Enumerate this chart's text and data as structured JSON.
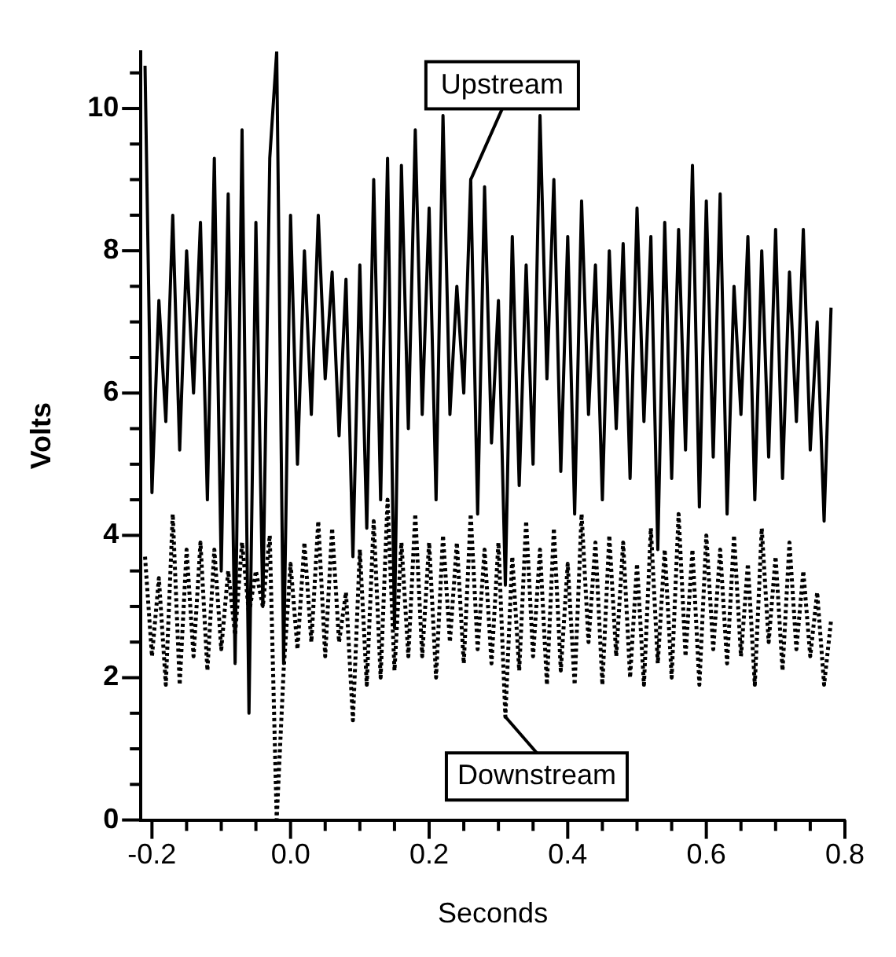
{
  "chart_data": {
    "type": "line",
    "xlabel": "Seconds",
    "ylabel": "Volts",
    "x": [
      -0.21,
      -0.2,
      -0.19,
      -0.18,
      -0.17,
      -0.16,
      -0.15,
      -0.14,
      -0.13,
      -0.12,
      -0.11,
      -0.1,
      -0.09,
      -0.08,
      -0.07,
      -0.06,
      -0.05,
      -0.04,
      -0.03,
      -0.02,
      -0.01,
      0,
      0.01,
      0.02,
      0.03,
      0.04,
      0.05,
      0.06,
      0.07,
      0.08,
      0.09,
      0.1,
      0.11,
      0.12,
      0.13,
      0.14,
      0.15,
      0.16,
      0.17,
      0.18,
      0.19,
      0.2,
      0.21,
      0.22,
      0.23,
      0.24,
      0.25,
      0.26,
      0.27,
      0.28,
      0.29,
      0.3,
      0.31,
      0.32,
      0.33,
      0.34,
      0.35,
      0.36,
      0.37,
      0.38,
      0.39,
      0.4,
      0.41,
      0.42,
      0.43,
      0.44,
      0.45,
      0.46,
      0.47,
      0.48,
      0.49,
      0.5,
      0.51,
      0.52,
      0.53,
      0.54,
      0.55,
      0.56,
      0.57,
      0.58,
      0.59,
      0.6,
      0.61,
      0.62,
      0.63,
      0.64,
      0.65,
      0.66,
      0.67,
      0.68,
      0.69,
      0.7,
      0.71,
      0.72,
      0.73,
      0.74,
      0.75,
      0.76,
      0.77,
      0.78
    ],
    "series": [
      {
        "color": "#000000",
        "line_style": "solid",
        "values": [
          10.6,
          4.6,
          7.3,
          5.6,
          8.5,
          5.2,
          8.0,
          6.0,
          8.4,
          4.5,
          9.3,
          3.5,
          8.8,
          2.2,
          9.7,
          1.5,
          8.4,
          3.0,
          9.3,
          10.8,
          2.2,
          8.5,
          5.0,
          8.0,
          5.7,
          8.5,
          6.2,
          7.7,
          5.4,
          7.6,
          3.7,
          7.8,
          4.1,
          9.0,
          4.5,
          9.3,
          2.7,
          9.2,
          5.5,
          9.7,
          5.7,
          8.6,
          4.5,
          9.9,
          5.7,
          7.5,
          6.0,
          9.0,
          4.3,
          8.9,
          5.3,
          7.3,
          3.3,
          8.2,
          4.7,
          7.8,
          5.0,
          9.9,
          6.2,
          9.0,
          4.9,
          8.2,
          4.3,
          8.7,
          5.7,
          7.8,
          4.5,
          8.0,
          5.5,
          8.1,
          4.8,
          8.6,
          5.6,
          8.2,
          3.8,
          8.4,
          4.8,
          8.3,
          5.2,
          9.2,
          4.4,
          8.7,
          5.1,
          8.8,
          4.3,
          7.5,
          5.7,
          8.2,
          4.5,
          8.0,
          5.1,
          8.3,
          4.8,
          7.7,
          5.6,
          8.3,
          5.2,
          7.0,
          4.2,
          7.2
        ]
      },
      {
        "color": "#000000",
        "line_style": "dotted",
        "values": [
          3.7,
          2.3,
          3.4,
          1.9,
          4.3,
          1.9,
          3.8,
          2.3,
          3.9,
          2.1,
          3.8,
          2.4,
          3.5,
          2.6,
          3.9,
          2.9,
          3.5,
          3.0,
          4.0,
          0.0,
          2.1,
          3.6,
          2.4,
          3.9,
          2.5,
          4.2,
          2.3,
          4.1,
          2.5,
          3.2,
          1.4,
          3.8,
          1.9,
          4.2,
          2.0,
          4.5,
          2.1,
          3.9,
          2.3,
          4.3,
          2.3,
          3.9,
          2.0,
          4.0,
          2.5,
          3.9,
          2.2,
          4.3,
          2.4,
          3.8,
          2.2,
          3.9,
          1.45,
          3.7,
          2.1,
          4.2,
          2.3,
          3.8,
          1.9,
          4.1,
          2.1,
          3.6,
          1.9,
          4.3,
          2.5,
          3.9,
          1.9,
          4.0,
          2.3,
          3.9,
          2.0,
          3.6,
          1.9,
          4.1,
          2.2,
          3.8,
          2.0,
          4.3,
          2.3,
          3.8,
          1.9,
          4.0,
          2.4,
          3.8,
          2.2,
          4.0,
          2.3,
          3.6,
          1.9,
          4.1,
          2.5,
          3.7,
          2.1,
          3.9,
          2.4,
          3.5,
          2.3,
          3.2,
          1.9,
          2.8
        ]
      }
    ],
    "xlim": [
      -0.216,
      0.8
    ],
    "xticks": [
      -0.2,
      {
        "value": -0.15,
        "label": null
      },
      {
        "value": -0.1,
        "label": null
      },
      {
        "value": -0.05,
        "label": null
      },
      {
        "value": 0,
        "label": "0.0"
      },
      {
        "value": 0.05,
        "label": null
      },
      {
        "value": 0.1,
        "label": null
      },
      {
        "value": 0.15,
        "label": null
      },
      0.2,
      {
        "value": 0.25,
        "label": null
      },
      {
        "value": 0.3,
        "label": null
      },
      {
        "value": 0.35,
        "label": null
      },
      0.4,
      {
        "value": 0.45,
        "label": null
      },
      {
        "value": 0.5,
        "label": null
      },
      {
        "value": 0.55,
        "label": null
      },
      0.6,
      {
        "value": 0.65,
        "label": null
      },
      {
        "value": 0.7,
        "label": null
      },
      {
        "value": 0.75,
        "label": null
      },
      0.8
    ],
    "ylim": [
      0,
      10.8
    ],
    "yticks": [
      0,
      {
        "value": 0.5,
        "label": null
      },
      {
        "value": 1,
        "label": null
      },
      {
        "value": 1.5,
        "label": null
      },
      2,
      {
        "value": 2.5,
        "label": null
      },
      {
        "value": 3,
        "label": null
      },
      {
        "value": 3.5,
        "label": null
      },
      4,
      {
        "value": 4.5,
        "label": null
      },
      {
        "value": 5,
        "label": null
      },
      {
        "value": 5.5,
        "label": null
      },
      6,
      {
        "value": 6.5,
        "label": null
      },
      {
        "value": 7,
        "label": null
      },
      {
        "value": 7.5,
        "label": null
      },
      8,
      {
        "value": 8.5,
        "label": null
      },
      {
        "value": 9,
        "label": null
      },
      {
        "value": 9.5,
        "label": null
      },
      10,
      {
        "value": 10.5,
        "label": null
      }
    ],
    "annotations": [
      {
        "text": "Upstream",
        "x": 0.26,
        "y": 9.0
      },
      {
        "text": "Downstream",
        "x": 0.31,
        "y": 1.45
      }
    ],
    "grid": false,
    "legend": false,
    "marker": "none"
  }
}
